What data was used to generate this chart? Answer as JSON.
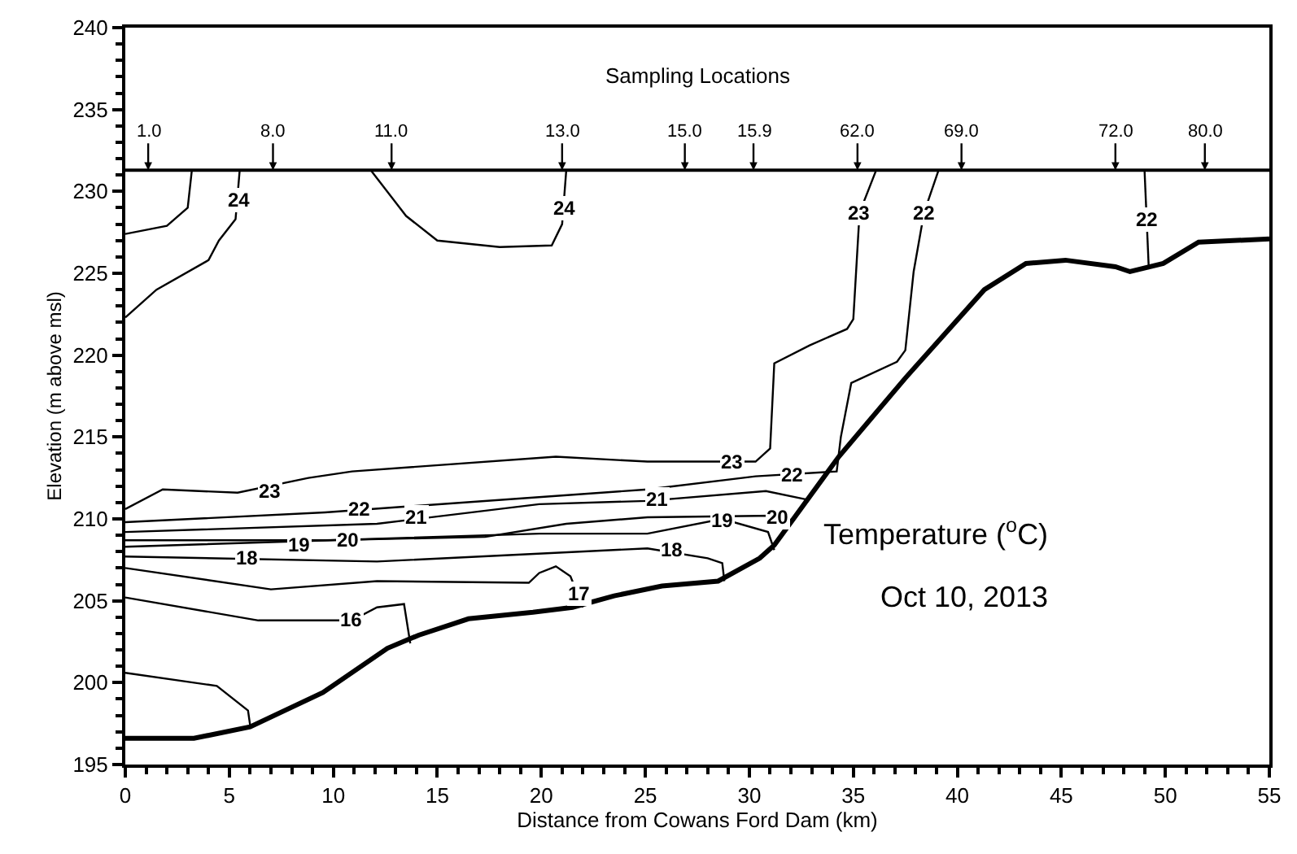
{
  "chart_data": {
    "type": "line",
    "xlabel": "Distance from Cowans Ford Dam (km)",
    "ylabel": "Elevation (m above msl)",
    "xlim": [
      0,
      55
    ],
    "xticks": [
      0,
      5,
      10,
      15,
      20,
      25,
      30,
      35,
      40,
      45,
      50,
      55
    ],
    "ylim": [
      195,
      240
    ],
    "yticks": [
      195,
      200,
      205,
      210,
      215,
      220,
      225,
      230,
      235,
      240
    ],
    "marker": "none",
    "line_style": "solid",
    "series": [
      {
        "color": "#000000",
        "x": [
          0,
          3.3,
          6,
          9.5,
          12.6,
          14.1,
          16.5,
          19.6,
          21.5,
          23.5,
          25.8,
          28.5,
          30.5,
          31.2,
          34.3,
          37.5,
          41.3,
          43.3,
          45.2,
          47.6,
          48.3,
          49.9,
          51.6,
          55
        ],
        "values": [
          196.6,
          196.6,
          197.3,
          199.4,
          202.1,
          202.9,
          203.9,
          204.3,
          204.6,
          205.3,
          205.9,
          206.2,
          207.6,
          208.4,
          213.8,
          218.6,
          224.0,
          225.6,
          225.8,
          225.4,
          225.1,
          225.6,
          226.9,
          227.1
        ]
      },
      {
        "color": "#000000",
        "x": [
          0,
          2,
          3,
          3.2
        ],
        "values": [
          227.4,
          227.9,
          229,
          231.3
        ]
      },
      {
        "color": "#000000",
        "x": [
          0,
          1.5,
          4,
          4.5,
          5.3,
          5.5
        ],
        "values": [
          222.3,
          224,
          225.8,
          227,
          228.3,
          231.3
        ]
      },
      {
        "color": "#000000",
        "x": [
          11.8,
          13.5,
          15,
          18,
          20.5,
          21,
          21.2
        ],
        "values": [
          231.3,
          228.5,
          227,
          226.6,
          226.7,
          228,
          231.3
        ]
      },
      {
        "color": "#000000",
        "x": [
          0,
          1.8,
          5.4,
          8.8,
          10.9,
          20.7,
          25.1,
          30.3,
          31.0,
          31.2,
          32.9,
          34.7,
          35.0,
          35.3,
          36.1
        ],
        "values": [
          210.6,
          211.8,
          211.6,
          212.5,
          212.9,
          213.8,
          213.5,
          213.5,
          214.3,
          219.5,
          220.6,
          221.6,
          222.2,
          228.7,
          231.3
        ]
      },
      {
        "color": "#000000",
        "x": [
          0,
          9.6,
          25.1,
          30.3,
          34.2,
          34.4,
          34.9,
          37.1,
          37.5,
          37.9,
          38.4,
          39.1
        ],
        "values": [
          209.8,
          210.4,
          211.8,
          212.6,
          212.9,
          215.0,
          218.3,
          219.6,
          220.3,
          225.1,
          228.7,
          231.3
        ]
      },
      {
        "color": "#000000",
        "x": [
          49.0,
          49.2
        ],
        "values": [
          231.3,
          225.4
        ]
      },
      {
        "color": "#000000",
        "x": [
          0,
          12.1,
          19.9,
          25.1,
          30.8,
          32.7
        ],
        "values": [
          209.2,
          209.7,
          210.9,
          211.1,
          211.7,
          211.2
        ]
      },
      {
        "color": "#000000",
        "x": [
          0,
          9.6,
          17.3,
          21.2,
          25.1,
          31.2,
          32.1
        ],
        "values": [
          208.7,
          208.7,
          208.9,
          209.7,
          210.1,
          210.2,
          209.9
        ]
      },
      {
        "color": "#000000",
        "x": [
          0,
          19.9,
          25.1,
          28.7,
          30.9,
          31.2
        ],
        "values": [
          208.3,
          209.1,
          209.1,
          210.0,
          209.2,
          208.1
        ]
      },
      {
        "color": "#000000",
        "x": [
          0,
          12.1,
          25.1,
          28.0,
          28.7,
          28.8
        ],
        "values": [
          207.7,
          207.4,
          208.2,
          207.6,
          207.3,
          206.2
        ]
      },
      {
        "color": "#000000",
        "x": [
          0,
          7.0,
          12.1,
          19.4,
          19.9,
          20.7,
          21.4,
          22.0
        ],
        "values": [
          207.0,
          205.7,
          206.2,
          206.1,
          206.7,
          207.1,
          206.5,
          204.6
        ]
      },
      {
        "color": "#000000",
        "x": [
          0,
          6.4,
          10.9,
          12.1,
          13.4,
          13.7
        ],
        "values": [
          205.2,
          203.8,
          203.8,
          204.6,
          204.8,
          202.4
        ]
      },
      {
        "color": "#000000",
        "x": [
          0,
          4.4,
          5.9,
          6.0
        ],
        "values": [
          200.6,
          199.8,
          198.3,
          197.4
        ]
      }
    ],
    "ref_lines": [
      {
        "axis": "y",
        "value": 231.3,
        "color": "#000000"
      }
    ],
    "annotations": [
      "Sampling Locations",
      {
        "text": "1.0",
        "x": 1.1,
        "y": 231.3
      },
      {
        "text": "8.0",
        "x": 7.1,
        "y": 231.3
      },
      {
        "text": "11.0",
        "x": 12.8,
        "y": 231.3
      },
      {
        "text": "13.0",
        "x": 21.0,
        "y": 231.3
      },
      {
        "text": "15.0",
        "x": 26.9,
        "y": 231.3
      },
      {
        "text": "15.9",
        "x": 30.2,
        "y": 231.3
      },
      {
        "text": "62.0",
        "x": 35.2,
        "y": 231.3
      },
      {
        "text": "69.0",
        "x": 40.2,
        "y": 231.3
      },
      {
        "text": "72.0",
        "x": 47.6,
        "y": 231.3
      },
      {
        "text": "80.0",
        "x": 51.9,
        "y": 231.3
      },
      {
        "text": "24",
        "x": 5.5,
        "y": 229.5
      },
      {
        "text": "24",
        "x": 21.1,
        "y": 229.0
      },
      {
        "text": "23",
        "x": 35.3,
        "y": 228.7
      },
      {
        "text": "22",
        "x": 38.4,
        "y": 228.7
      },
      {
        "text": "22",
        "x": 49.1,
        "y": 228.3
      },
      {
        "text": "23",
        "x": 7.0,
        "y": 211.7
      },
      {
        "text": "23",
        "x": 29.2,
        "y": 213.5
      },
      {
        "text": "22",
        "x": 11.3,
        "y": 210.6
      },
      {
        "text": "22",
        "x": 32.1,
        "y": 212.7
      },
      {
        "text": "21",
        "x": 14.0,
        "y": 210.1
      },
      {
        "text": "21",
        "x": 25.6,
        "y": 211.2
      },
      {
        "text": "20",
        "x": 10.7,
        "y": 208.7
      },
      {
        "text": "20",
        "x": 31.4,
        "y": 210.1
      },
      {
        "text": "19",
        "x": 8.4,
        "y": 208.4
      },
      {
        "text": "19",
        "x": 28.7,
        "y": 209.9
      },
      {
        "text": "18",
        "x": 5.9,
        "y": 207.6
      },
      {
        "text": "18",
        "x": 26.3,
        "y": 208.1
      },
      {
        "text": "17",
        "x": 21.8,
        "y": 205.4
      },
      {
        "text": "16",
        "x": 10.9,
        "y": 203.8
      },
      "Temperature ($^{o}$C)",
      "Oct 10, 2013"
    ]
  }
}
